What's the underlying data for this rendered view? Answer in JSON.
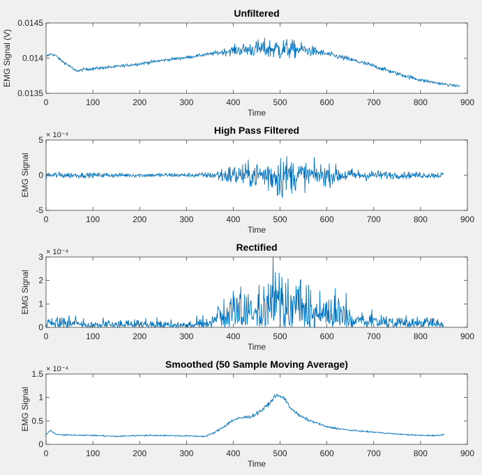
{
  "chart_data": [
    {
      "type": "line",
      "title": "Unfiltered",
      "xlabel": "Time",
      "ylabel": "EMG Signal (V)",
      "xlim": [
        0,
        900
      ],
      "ylim": [
        0.0135,
        0.0145
      ],
      "x_ticks": [
        0,
        100,
        200,
        300,
        400,
        500,
        600,
        700,
        800,
        900
      ],
      "y_ticks": [
        0.0135,
        0.014,
        0.0145
      ],
      "y_tick_labels": [
        "0.0135",
        "0.014",
        "0.0145"
      ],
      "exponent_label": "",
      "line_color": "#0072bd",
      "series": [
        {
          "x": [
            0,
            10,
            20,
            30,
            40,
            50,
            60,
            70,
            80,
            100,
            150,
            200,
            250,
            300,
            350,
            400,
            450,
            500,
            550,
            600,
            650,
            700,
            750,
            800,
            850,
            885
          ],
          "y": [
            0.01402,
            0.01406,
            0.01404,
            0.01398,
            0.01393,
            0.01389,
            0.01383,
            0.01382,
            0.01384,
            0.01385,
            0.01388,
            0.01392,
            0.01397,
            0.01401,
            0.01406,
            0.01411,
            0.01413,
            0.01413,
            0.01412,
            0.01406,
            0.01398,
            0.01389,
            0.01378,
            0.01369,
            0.01363,
            0.0136
          ],
          "noise": [
            1.5e-05,
            1.5e-05,
            1.5e-05,
            1.5e-05,
            1.5e-05,
            1.5e-05,
            1.5e-05,
            1.5e-05,
            1.5e-05,
            1.5e-05,
            1.5e-05,
            1.5e-05,
            1.5e-05,
            1.5e-05,
            1.5e-05,
            5e-05,
            9e-05,
            0.00012,
            7e-05,
            3e-05,
            2.5e-05,
            2.2e-05,
            2e-05,
            1.8e-05,
            1.5e-05,
            1.2e-05
          ]
        }
      ]
    },
    {
      "type": "line",
      "title": "High Pass Filtered",
      "xlabel": "Time",
      "ylabel": "EMG Signal",
      "xlim": [
        0,
        900
      ],
      "ylim": [
        -5,
        5
      ],
      "x_ticks": [
        0,
        100,
        200,
        300,
        400,
        500,
        600,
        700,
        800,
        900
      ],
      "y_ticks": [
        -5,
        0,
        5
      ],
      "y_tick_labels": [
        "-5",
        "0",
        "5"
      ],
      "exponent_label": "× 10⁻⁴",
      "line_color": "#0072bd",
      "series": [
        {
          "x": [
            0,
            50,
            100,
            200,
            300,
            350,
            380,
            400,
            450,
            480,
            500,
            520,
            550,
            600,
            650,
            700,
            750,
            850
          ],
          "y": [
            0,
            0,
            0,
            0,
            0,
            0,
            0,
            0,
            0,
            0,
            0,
            0,
            0,
            0,
            0,
            0,
            0,
            0
          ],
          "noise": [
            0.35,
            0.3,
            0.25,
            0.22,
            0.22,
            0.3,
            0.9,
            1.1,
            1.3,
            2.0,
            2.5,
            1.8,
            1.4,
            1.1,
            0.7,
            0.5,
            0.35,
            0.3
          ]
        }
      ]
    },
    {
      "type": "line",
      "title": "Rectified",
      "xlabel": "Time",
      "ylabel": "EMG Signal",
      "xlim": [
        0,
        900
      ],
      "ylim": [
        0,
        3
      ],
      "x_ticks": [
        0,
        100,
        200,
        300,
        400,
        500,
        600,
        700,
        800,
        900
      ],
      "y_ticks": [
        0,
        1,
        2,
        3
      ],
      "y_tick_labels": [
        "0",
        "1",
        "2",
        "3"
      ],
      "exponent_label": "× 10⁻⁴",
      "line_color": "#0072bd",
      "series": [
        {
          "x": [
            0,
            50,
            100,
            200,
            300,
            350,
            380,
            400,
            450,
            480,
            500,
            520,
            550,
            600,
            650,
            700,
            750,
            850
          ],
          "y": [
            0,
            0,
            0,
            0,
            0,
            0,
            0,
            0,
            0,
            0,
            0,
            0,
            0,
            0,
            0,
            0,
            0,
            0
          ],
          "noise": [
            0.35,
            0.3,
            0.25,
            0.22,
            0.22,
            0.3,
            0.9,
            1.1,
            1.3,
            2.0,
            2.5,
            1.8,
            1.4,
            1.1,
            0.7,
            0.5,
            0.35,
            0.3
          ],
          "abs": true
        }
      ]
    },
    {
      "type": "line",
      "title": "Smoothed (50 Sample Moving Average)",
      "xlabel": "Time",
      "ylabel": "EMG Signal",
      "xlim": [
        0,
        900
      ],
      "ylim": [
        0,
        1.5
      ],
      "x_ticks": [
        0,
        100,
        200,
        300,
        400,
        500,
        600,
        700,
        800,
        900
      ],
      "y_ticks": [
        0,
        0.5,
        1,
        1.5
      ],
      "y_tick_labels": [
        "0",
        "0.5",
        "1",
        "1.5"
      ],
      "exponent_label": "× 10⁻⁴",
      "line_color": "#0072bd",
      "series": [
        {
          "x": [
            0,
            5,
            10,
            20,
            30,
            60,
            100,
            150,
            200,
            250,
            300,
            340,
            360,
            380,
            400,
            420,
            440,
            460,
            480,
            490,
            500,
            510,
            520,
            540,
            560,
            580,
            600,
            650,
            700,
            750,
            800,
            840,
            850
          ],
          "y": [
            0.2,
            0.25,
            0.3,
            0.22,
            0.2,
            0.2,
            0.19,
            0.17,
            0.19,
            0.19,
            0.18,
            0.17,
            0.25,
            0.38,
            0.52,
            0.57,
            0.6,
            0.72,
            0.9,
            1.05,
            1.02,
            0.98,
            0.8,
            0.62,
            0.52,
            0.45,
            0.37,
            0.3,
            0.26,
            0.22,
            0.19,
            0.19,
            0.22
          ],
          "noise": [
            0.01,
            0.01,
            0.01,
            0.01,
            0.01,
            0.01,
            0.01,
            0.01,
            0.01,
            0.01,
            0.01,
            0.01,
            0.015,
            0.02,
            0.025,
            0.025,
            0.03,
            0.03,
            0.03,
            0.03,
            0.03,
            0.03,
            0.025,
            0.02,
            0.02,
            0.015,
            0.015,
            0.01,
            0.01,
            0.01,
            0.01,
            0.01,
            0.01
          ]
        }
      ]
    }
  ]
}
